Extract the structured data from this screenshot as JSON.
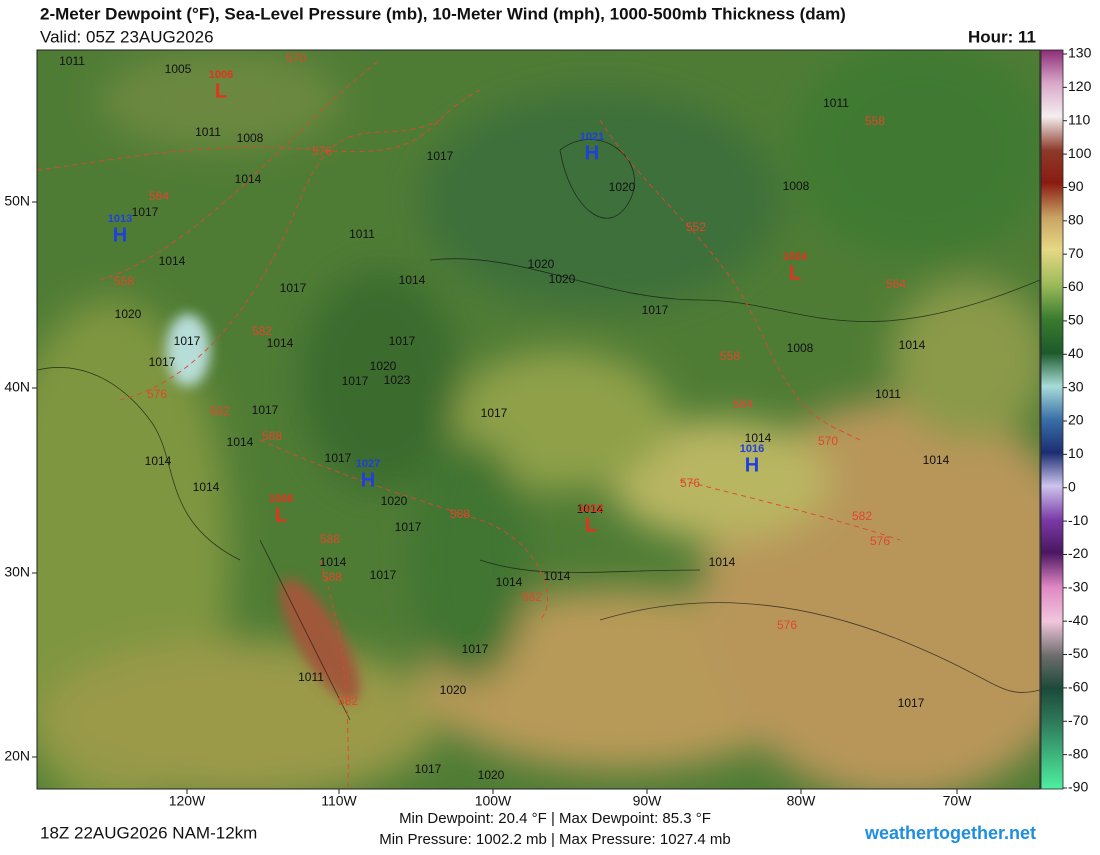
{
  "header": {
    "title": "2-Meter Dewpoint (°F), Sea-Level Pressure (mb), 10-Meter Wind (mph), 1000-500mb Thickness (dam)",
    "valid": "Valid: 05Z 23AUG2026",
    "hour": "Hour: 11"
  },
  "colorbar": {
    "ticks": [
      130,
      120,
      110,
      100,
      90,
      80,
      70,
      60,
      50,
      40,
      30,
      20,
      10,
      0,
      -10,
      -20,
      -30,
      -40,
      -50,
      -60,
      -70,
      -80,
      -90
    ]
  },
  "axes": {
    "lon_labels": [
      "120W",
      "110W",
      "100W",
      "90W",
      "80W",
      "70W"
    ],
    "lat_labels": [
      "50N",
      "40N",
      "30N",
      "20N"
    ]
  },
  "pressure_centers": [
    {
      "type": "H",
      "value": "1021"
    },
    {
      "type": "H",
      "value": "1013"
    },
    {
      "type": "L",
      "value": "1006"
    },
    {
      "type": "L",
      "value": "1004"
    },
    {
      "type": "L",
      "value": "1008"
    },
    {
      "type": "H",
      "value": "1027"
    },
    {
      "type": "H",
      "value": "1016"
    },
    {
      "type": "L",
      "value": "1012"
    }
  ],
  "isobar_labels": [
    "1011",
    "1005",
    "1011",
    "1008",
    "1017",
    "1020",
    "1011",
    "1008",
    "1014",
    "1017",
    "1011",
    "1014",
    "1014",
    "1020",
    "1020",
    "1017",
    "1017",
    "1020",
    "1017",
    "1014",
    "1017",
    "1017",
    "1020",
    "1023",
    "1017",
    "1008",
    "1014",
    "1011",
    "1017",
    "1017",
    "1014",
    "1014",
    "1014",
    "1017",
    "1014",
    "1020",
    "1014",
    "1017",
    "1014",
    "1014",
    "1017",
    "1014",
    "1014",
    "1014",
    "1017",
    "1011",
    "1020",
    "1017",
    "1017",
    "1020"
  ],
  "thickness_labels": [
    "570",
    "558",
    "576",
    "564",
    "552",
    "558",
    "564",
    "582",
    "558",
    "576",
    "582",
    "564",
    "588",
    "570",
    "576",
    "588",
    "582",
    "588",
    "576",
    "588",
    "582",
    "576",
    "582"
  ],
  "footer": {
    "run": "18Z 22AUG2026 NAM-12km",
    "stats_line1": "Min Dewpoint: 20.4 °F | Max Dewpoint: 85.3 °F",
    "stats_line2": "Min Pressure: 1002.2 mb | Max Pressure: 1027.4 mb",
    "site": "weathertogether.net"
  }
}
